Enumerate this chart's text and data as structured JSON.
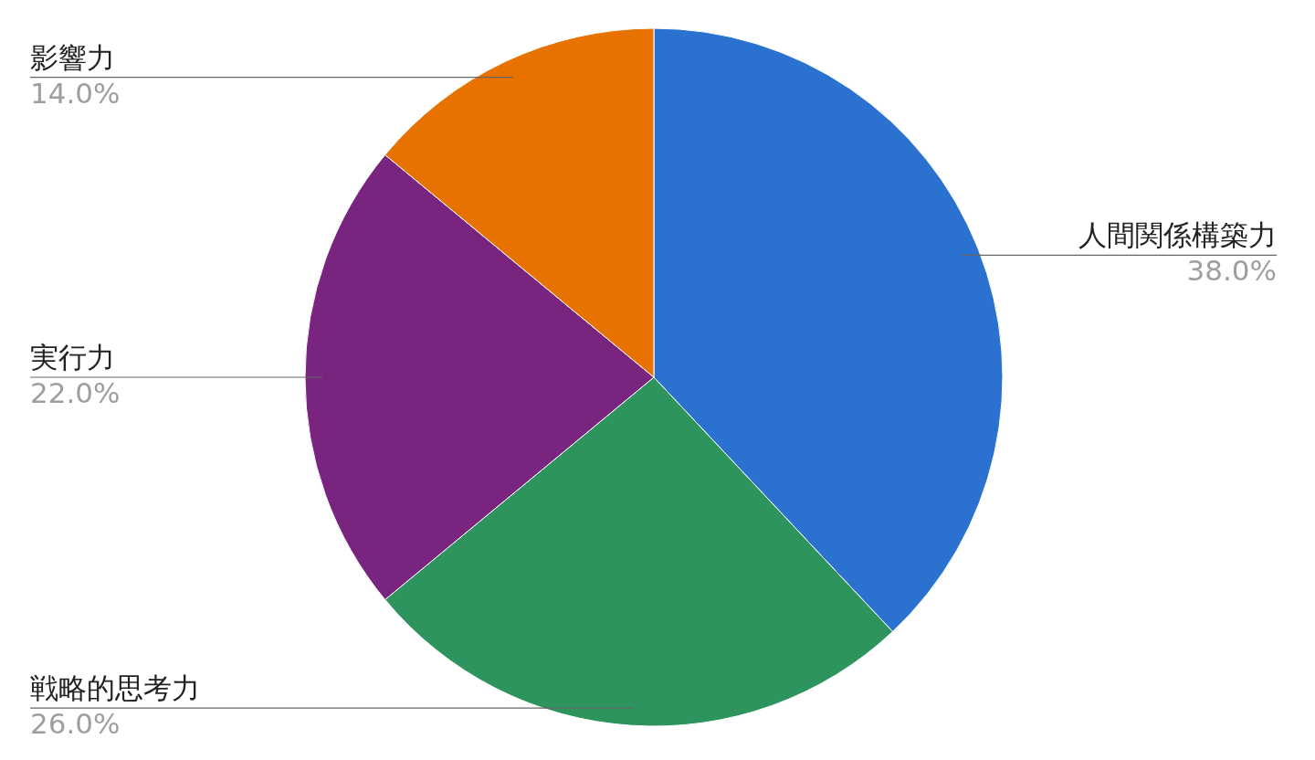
{
  "chart_data": {
    "type": "pie",
    "categories": [
      "人間関係構築力",
      "戦略的思考力",
      "実行力",
      "影響力"
    ],
    "values": [
      38,
      26,
      22,
      14
    ],
    "value_labels": [
      "38.0%",
      "26.0%",
      "22.0%",
      "14.0%"
    ],
    "colors": [
      "#2a71d0",
      "#2d945e",
      "#79247f",
      "#e87200"
    ]
  }
}
